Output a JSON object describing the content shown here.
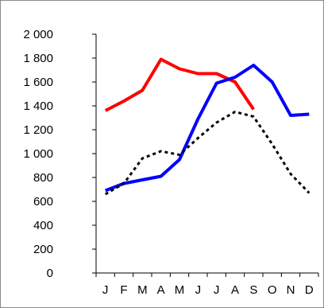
{
  "chart_data": {
    "type": "line",
    "title": "",
    "xlabel": "",
    "ylabel": "",
    "categories": [
      "J",
      "F",
      "M",
      "A",
      "M",
      "J",
      "J",
      "A",
      "S",
      "O",
      "N",
      "D"
    ],
    "y_ticks": [
      "0",
      "200",
      "400",
      "600",
      "800",
      "1 000",
      "1 200",
      "1 400",
      "1 600",
      "1 800",
      "2 000"
    ],
    "ylim": [
      0,
      2000
    ],
    "grid": false,
    "legend": "none",
    "series": [
      {
        "color": "#ff0000",
        "style": "solid",
        "values": [
          1360,
          1440,
          1530,
          1790,
          1710,
          1670,
          1670,
          1600,
          1370,
          null,
          null,
          null
        ]
      },
      {
        "color": "#0000ff",
        "style": "solid",
        "values": [
          690,
          750,
          780,
          810,
          950,
          1290,
          1590,
          1640,
          1740,
          1600,
          1320,
          1330
        ]
      },
      {
        "color": "#000000",
        "style": "dotted",
        "values": [
          660,
          750,
          960,
          1020,
          990,
          1130,
          1260,
          1350,
          1310,
          1080,
          830,
          670
        ]
      }
    ]
  }
}
